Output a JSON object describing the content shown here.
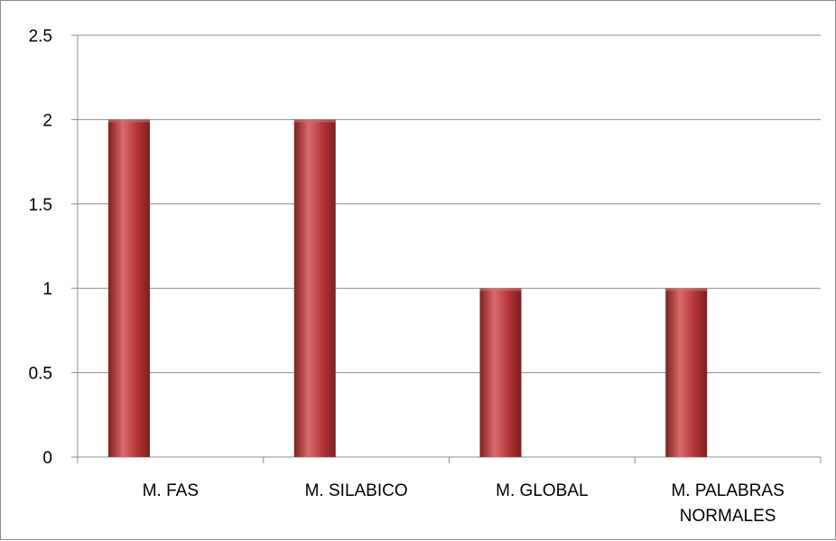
{
  "chart_data": {
    "type": "bar",
    "categories": [
      [
        "M. FAS"
      ],
      [
        "M. SILABICO"
      ],
      [
        "M. GLOBAL"
      ],
      [
        "M. PALABRAS",
        "NORMALES"
      ]
    ],
    "values": [
      2,
      2,
      1,
      1
    ],
    "y_ticks": [
      "0",
      "0.5",
      "1",
      "1.5",
      "2",
      "2.5"
    ],
    "ylim": [
      0,
      2.5
    ],
    "grid": true,
    "bar_color": "#b23434",
    "bar_color_dark": "#7e1f1f",
    "bar_color_light": "#d96b6b",
    "gridline_color": "#8c8c8c",
    "axis_color": "#8c8c8c"
  }
}
